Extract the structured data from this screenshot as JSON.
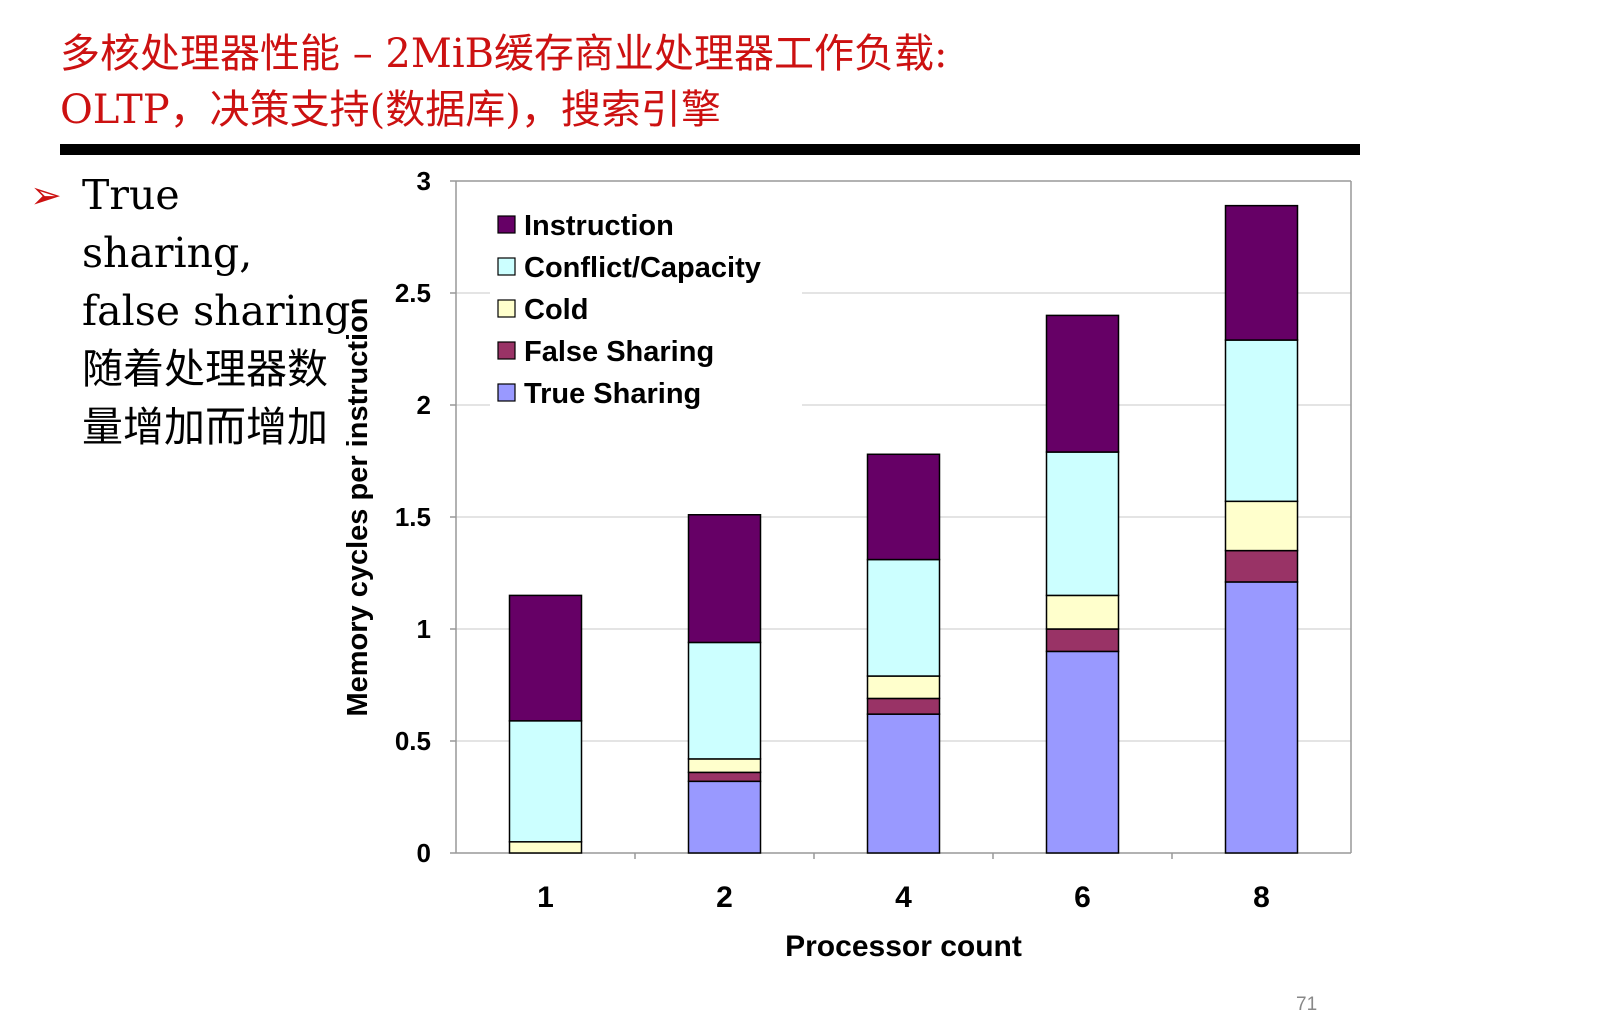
{
  "slide": {
    "title_line1": "多核处理器性能 – 2MiB缓存商业处理器工作负载:",
    "title_line2": "OLTP，决策支持(数据库)，搜索引擎",
    "bullet_marker": "➢",
    "bullet_text": "True sharing, false sharing 随着处理器数量增加而增加",
    "page_number": "71"
  },
  "chart_data": {
    "type": "bar",
    "stacked": true,
    "categories": [
      "1",
      "2",
      "4",
      "6",
      "8"
    ],
    "series": [
      {
        "name": "True Sharing",
        "color": "#9999ff",
        "values": [
          0.0,
          0.32,
          0.62,
          0.9,
          1.21
        ]
      },
      {
        "name": "False Sharing",
        "color": "#993366",
        "values": [
          0.0,
          0.04,
          0.07,
          0.1,
          0.14
        ]
      },
      {
        "name": "Cold",
        "color": "#ffffcc",
        "values": [
          0.05,
          0.06,
          0.1,
          0.15,
          0.22
        ]
      },
      {
        "name": "Conflict/Capacity",
        "color": "#ccffff",
        "values": [
          0.54,
          0.52,
          0.52,
          0.64,
          0.72
        ]
      },
      {
        "name": "Instruction",
        "color": "#660066",
        "values": [
          0.56,
          0.57,
          0.47,
          0.61,
          0.6
        ]
      }
    ],
    "legend_order": [
      "Instruction",
      "Conflict/Capacity",
      "Cold",
      "False Sharing",
      "True Sharing"
    ],
    "legend_position": "top-left",
    "xlabel": "Processor count",
    "ylabel": "Memory cycles per instruction",
    "ylim": [
      0,
      3
    ],
    "yticks": [
      0,
      0.5,
      1,
      1.5,
      2,
      2.5,
      3
    ],
    "ytick_labels": [
      "0",
      "0.5",
      "1",
      "1.5",
      "2",
      "2.5",
      "3"
    ],
    "grid": true
  }
}
